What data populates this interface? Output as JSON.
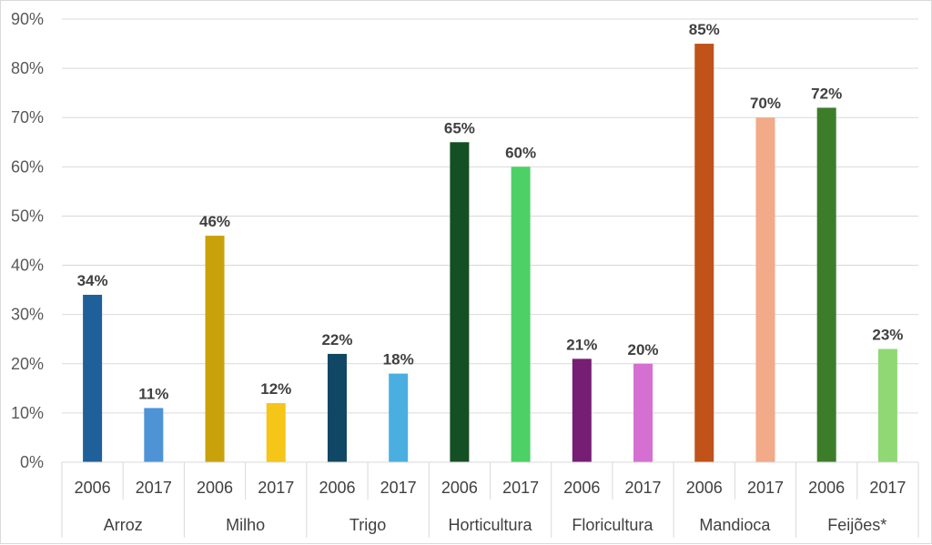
{
  "chart_data": {
    "type": "bar",
    "title": "",
    "xlabel": "",
    "ylabel": "",
    "ylim": [
      0,
      90
    ],
    "y_ticks": [
      "0%",
      "10%",
      "20%",
      "30%",
      "40%",
      "50%",
      "60%",
      "70%",
      "80%",
      "90%"
    ],
    "grid": true,
    "legend": "none",
    "groups": [
      "Arroz",
      "Milho",
      "Trigo",
      "Horticultura",
      "Floricultura",
      "Mandioca",
      "Feijões*"
    ],
    "categories": [
      "2006",
      "2017",
      "2006",
      "2017",
      "2006",
      "2017",
      "2006",
      "2017",
      "2006",
      "2017",
      "2006",
      "2017",
      "2006",
      "2017"
    ],
    "values": [
      34,
      11,
      46,
      12,
      22,
      18,
      65,
      60,
      21,
      20,
      85,
      70,
      72,
      23
    ],
    "data_labels": [
      "34%",
      "11%",
      "46%",
      "12%",
      "22%",
      "18%",
      "65%",
      "60%",
      "21%",
      "20%",
      "85%",
      "70%",
      "72%",
      "23%"
    ],
    "colors": [
      "#1f5f9a",
      "#4d93d6",
      "#c9a10a",
      "#f5c518",
      "#0f4764",
      "#4aaee0",
      "#154f24",
      "#4dd065",
      "#761e73",
      "#d56fd1",
      "#c0521a",
      "#f2aa88",
      "#3d7d2a",
      "#8fd873"
    ]
  }
}
